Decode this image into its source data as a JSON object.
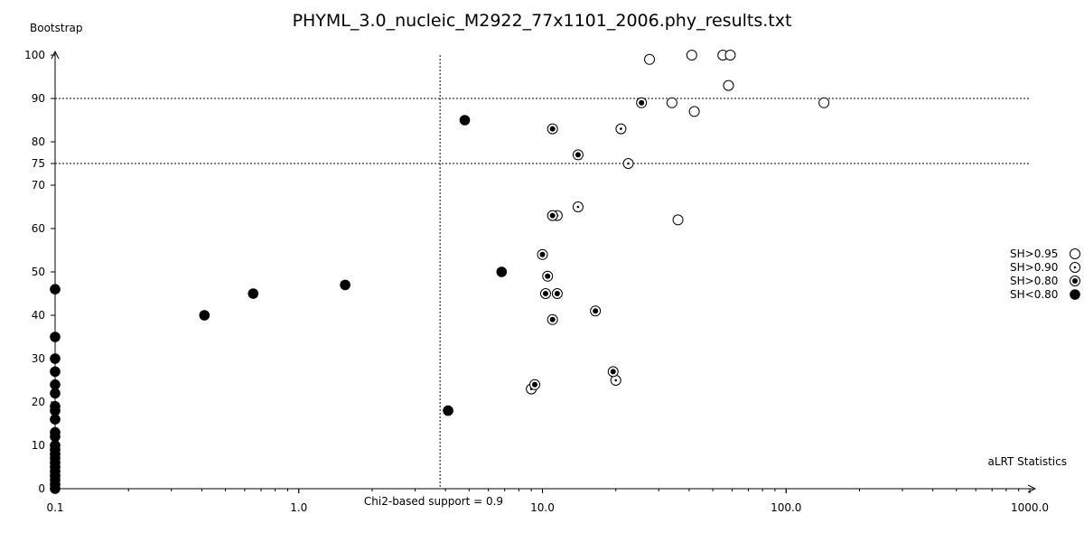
{
  "chart_data": {
    "type": "scatter",
    "title": "PHYML_3.0_nucleic_M2922_77x1101_2006.phy_results.txt",
    "xlabel": "aLRT Statistics",
    "ylabel": "Bootstrap",
    "x_scale": "log",
    "xlim": [
      0.1,
      1000.0
    ],
    "ylim": [
      0,
      100
    ],
    "x_tick_labels": [
      "0.1",
      "1.0",
      "10.0",
      "100.0",
      "1000.0"
    ],
    "x_tick_values": [
      0.1,
      1,
      10,
      100,
      1000
    ],
    "y_tick_values": [
      0,
      10,
      20,
      30,
      40,
      50,
      60,
      70,
      75,
      80,
      90,
      100
    ],
    "y_tick_labels": [
      "0",
      "10",
      "20",
      "30",
      "40",
      "50",
      "60",
      "70",
      "75",
      "80",
      "90",
      "100"
    ],
    "grid": false,
    "reference_lines": {
      "vertical": {
        "x": 3.8,
        "label": "Chi2-based support = 0.9"
      },
      "horizontal": [
        75,
        90
      ]
    },
    "legend_position": "right",
    "series": [
      {
        "name": "SH>0.95",
        "marker": "open-circle",
        "points": [
          {
            "x": 27.5,
            "y": 99
          },
          {
            "x": 41,
            "y": 100
          },
          {
            "x": 55,
            "y": 100
          },
          {
            "x": 59,
            "y": 100
          },
          {
            "x": 58,
            "y": 93
          },
          {
            "x": 34,
            "y": 89
          },
          {
            "x": 42,
            "y": 87
          },
          {
            "x": 143,
            "y": 89
          },
          {
            "x": 36,
            "y": 62
          }
        ]
      },
      {
        "name": "SH>0.90",
        "marker": "dot-circle",
        "points": [
          {
            "x": 21,
            "y": 83
          },
          {
            "x": 22.5,
            "y": 75
          },
          {
            "x": 14,
            "y": 65
          },
          {
            "x": 11.5,
            "y": 63
          },
          {
            "x": 9,
            "y": 23
          },
          {
            "x": 20,
            "y": 25
          }
        ]
      },
      {
        "name": "SH>0.80",
        "marker": "ringed-dot",
        "points": [
          {
            "x": 25.5,
            "y": 89
          },
          {
            "x": 11,
            "y": 83
          },
          {
            "x": 14,
            "y": 77
          },
          {
            "x": 11,
            "y": 63
          },
          {
            "x": 10,
            "y": 54
          },
          {
            "x": 10.5,
            "y": 49
          },
          {
            "x": 10.3,
            "y": 45
          },
          {
            "x": 11.5,
            "y": 45
          },
          {
            "x": 11,
            "y": 39
          },
          {
            "x": 16.5,
            "y": 41
          },
          {
            "x": 19.5,
            "y": 27
          },
          {
            "x": 9.3,
            "y": 24
          }
        ]
      },
      {
        "name": "SH<0.80",
        "marker": "filled-circle",
        "points": [
          {
            "x": 4.8,
            "y": 85
          },
          {
            "x": 6.8,
            "y": 50
          },
          {
            "x": 1.55,
            "y": 47
          },
          {
            "x": 0.65,
            "y": 45
          },
          {
            "x": 0.41,
            "y": 40
          },
          {
            "x": 4.1,
            "y": 18
          },
          {
            "x": 0.1,
            "y": 46
          },
          {
            "x": 0.1,
            "y": 35
          },
          {
            "x": 0.1,
            "y": 30
          },
          {
            "x": 0.1,
            "y": 27
          },
          {
            "x": 0.1,
            "y": 24
          },
          {
            "x": 0.1,
            "y": 22
          },
          {
            "x": 0.1,
            "y": 19
          },
          {
            "x": 0.1,
            "y": 18
          },
          {
            "x": 0.1,
            "y": 16
          },
          {
            "x": 0.1,
            "y": 13
          },
          {
            "x": 0.1,
            "y": 12
          },
          {
            "x": 0.1,
            "y": 10
          },
          {
            "x": 0.1,
            "y": 9
          },
          {
            "x": 0.1,
            "y": 8
          },
          {
            "x": 0.1,
            "y": 7
          },
          {
            "x": 0.1,
            "y": 6
          },
          {
            "x": 0.1,
            "y": 5
          },
          {
            "x": 0.1,
            "y": 4
          },
          {
            "x": 0.1,
            "y": 3
          },
          {
            "x": 0.1,
            "y": 2
          },
          {
            "x": 0.1,
            "y": 1
          },
          {
            "x": 0.1,
            "y": 0
          }
        ]
      }
    ]
  }
}
